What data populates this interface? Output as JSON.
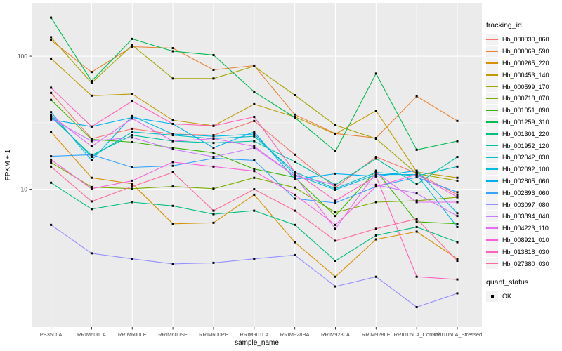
{
  "figure": {
    "background": "#FFFFFF",
    "panel_bg": "#EBEBEB",
    "grid_color": "#FFFFFF",
    "tick_color": "#333333",
    "tick_label_color": "#4D4D4D",
    "title_color": "#000000"
  },
  "legend": {
    "tracking_title": "tracking_id",
    "quant_title": "quant_status",
    "quant_label": "OK"
  },
  "chart_data": {
    "type": "line",
    "title": "",
    "xlabel": "sample_name",
    "ylabel": "FPKM + 1",
    "y_scale": "log10",
    "ylim": [
      0.92,
      252
    ],
    "y_ticks": [
      10,
      100
    ],
    "y_tick_labels": [
      "10",
      "100"
    ],
    "y_minor": [
      3.162,
      31.62
    ],
    "grid": true,
    "legend_position": "right",
    "marker": {
      "shape": "square",
      "color": "#000000",
      "status_label": "OK"
    },
    "x_categories": [
      "PB350LA",
      "RRIM600LA",
      "RRIM600LE",
      "RRIM600SE",
      "RRIM600PE",
      "RRIM901LA",
      "RRIM928BA",
      "RRIM928LA",
      "RRIM928LE",
      "RRII105LA_Control",
      "RRII105LA_Stressed"
    ],
    "series": [
      {
        "name": "Hb_000030_060",
        "color": "#F8766D",
        "values": [
          53,
          24,
          28.5,
          26,
          25.5,
          32.6,
          18.2,
          10.3,
          17.5,
          13.2,
          9.1
        ]
      },
      {
        "name": "Hb_000069_590",
        "color": "#EA8331",
        "values": [
          132,
          76,
          118,
          115,
          79,
          85,
          36.4,
          26.2,
          24.3,
          50,
          32.6
        ]
      },
      {
        "name": "Hb_000265_220",
        "color": "#D89000",
        "values": [
          27,
          12.2,
          11,
          5.5,
          5.6,
          9.1,
          4.0,
          2.2,
          4.2,
          4.8,
          3.0
        ]
      },
      {
        "name": "Hb_000453_140",
        "color": "#C09B00",
        "values": [
          96,
          50.5,
          52,
          33,
          30,
          43.6,
          35,
          26,
          39,
          13.5,
          12.2
        ]
      },
      {
        "name": "Hb_000599_170",
        "color": "#A3A500",
        "values": [
          139,
          63,
          121,
          68,
          68,
          84,
          51,
          30.3,
          24,
          13.1,
          11.6
        ]
      },
      {
        "name": "Hb_000718_070",
        "color": "#7CAE00",
        "values": [
          15.9,
          10.4,
          10.1,
          10.5,
          10.1,
          12.2,
          10.3,
          6.7,
          8.0,
          8.2,
          8.7
        ]
      },
      {
        "name": "Hb_001051_090",
        "color": "#39B600",
        "values": [
          47,
          23.7,
          22.6,
          20.5,
          18.8,
          14.2,
          12.3,
          6.3,
          13.8,
          5.7,
          5.5
        ]
      },
      {
        "name": "Hb_001259_310",
        "color": "#00BB4E",
        "values": [
          195,
          65,
          135,
          109,
          102,
          54,
          34.6,
          19.3,
          74,
          19.8,
          23
        ]
      },
      {
        "name": "Hb_001301_220",
        "color": "#00BF7D",
        "values": [
          11.2,
          7.1,
          8.0,
          7.5,
          6.5,
          6.9,
          5.4,
          2.9,
          4.5,
          5.2,
          4.0
        ]
      },
      {
        "name": "Hb_001952_120",
        "color": "#00C1A3",
        "values": [
          35,
          18,
          25.5,
          23,
          22.3,
          23,
          16.1,
          10.8,
          17,
          10.9,
          17.5
        ]
      },
      {
        "name": "Hb_002042_030",
        "color": "#00BFC4",
        "values": [
          36,
          17.5,
          27,
          25.5,
          24,
          25,
          13.5,
          10.1,
          13.4,
          12.6,
          14.8
        ]
      },
      {
        "name": "Hb_002092_100",
        "color": "#00BAE0",
        "values": [
          38,
          16.5,
          35.5,
          26,
          25,
          26,
          12.9,
          9.9,
          12.9,
          12.9,
          5.2
        ]
      },
      {
        "name": "Hb_002805_060",
        "color": "#00B0F6",
        "values": [
          33.4,
          29.6,
          34.6,
          31,
          20.5,
          27,
          11.9,
          13.1,
          12.5,
          13.8,
          6.6
        ]
      },
      {
        "name": "Hb_002896_060",
        "color": "#35A2FF",
        "values": [
          17.7,
          18.2,
          14.6,
          15,
          17.1,
          16.5,
          8.5,
          7.9,
          10.5,
          12.3,
          9.5
        ]
      },
      {
        "name": "Hb_003097_080",
        "color": "#9590FF",
        "values": [
          5.4,
          3.3,
          3.0,
          2.75,
          2.8,
          3.0,
          3.2,
          1.86,
          2.2,
          1.3,
          1.65
        ]
      },
      {
        "name": "Hb_003894_040",
        "color": "#C77CFF",
        "values": [
          34,
          23,
          24.5,
          20,
          17.5,
          20.5,
          12.6,
          10.8,
          10.8,
          9.3,
          6.3
        ]
      },
      {
        "name": "Hb_004223_110",
        "color": "#E76BF3",
        "values": [
          36,
          21,
          34,
          23,
          24,
          21,
          12.6,
          5.05,
          13.4,
          8.0,
          8.0
        ]
      },
      {
        "name": "Hb_008921_010",
        "color": "#FA62DB",
        "values": [
          16.7,
          10.1,
          11.6,
          16,
          14.8,
          13.7,
          9.1,
          5.4,
          10.5,
          12.9,
          8.75
        ]
      },
      {
        "name": "Hb_013818_030",
        "color": "#FF62BC",
        "values": [
          58,
          29.6,
          46,
          31,
          30,
          35,
          13.5,
          8.2,
          12.5,
          2.2,
          2.1
        ]
      },
      {
        "name": "Hb_027380_030",
        "color": "#FF6A98",
        "values": [
          14.8,
          8.1,
          10.5,
          13.4,
          6.9,
          10,
          6.9,
          4.1,
          5.05,
          6.0,
          2.9
        ]
      }
    ]
  }
}
